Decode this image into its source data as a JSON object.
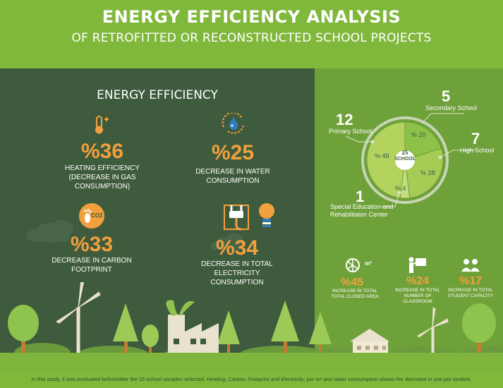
{
  "header": {
    "title": "ENERGY EFFICIENCY ANALYSIS",
    "subtitle": "OF RETROFITTED OR RECONSTRUCTED SCHOOL PROJECTS"
  },
  "energy": {
    "title": "ENERGY EFFICIENCY",
    "stats": [
      {
        "value": "%36",
        "label_lines": [
          "HEATING EFFICIENCY",
          "(DECREASE IN GAS",
          "CONSUMPTION)"
        ],
        "icon": "thermometer-icon"
      },
      {
        "value": "%25",
        "label_lines": [
          "DECREASE IN WATER",
          "CONSUMPTION"
        ],
        "icon": "water-drop-icon"
      },
      {
        "value": "%33",
        "label_lines": [
          "DECREASE IN CARBON",
          "FOOTPRINT"
        ],
        "icon": "footprint-co2-icon",
        "icon_text": "CO2"
      },
      {
        "value": "%34",
        "label_lines": [
          "DECREASE IN TOTAL",
          "ELECTRICITY",
          "CONSUMPTION"
        ],
        "icon": "plug-bulb-icon"
      }
    ]
  },
  "schools": {
    "total": "25",
    "center_label": "SCHOOL",
    "segments": [
      {
        "count": "12",
        "name": "Primary School",
        "percent": "% 48",
        "value": 48,
        "color": "#b4d35e"
      },
      {
        "count": "5",
        "name": "Secondary School",
        "percent": "% 20",
        "value": 20,
        "color": "#8dc14a"
      },
      {
        "count": "7",
        "name": "High School",
        "percent": "% 28",
        "value": 28,
        "color": "#a6cc56"
      },
      {
        "count": "1",
        "name_lines": [
          "Special Education and",
          "Rehabilitaion Center"
        ],
        "percent": "% 4",
        "value": 4,
        "color": "#c6de80"
      }
    ]
  },
  "building_stats": [
    {
      "value": "%45",
      "label_lines": [
        "INCREASE IN TOTAL",
        "TOTAL CLOSED AREA"
      ],
      "icon": "area-m2-icon",
      "icon_text": "m²"
    },
    {
      "value": "%24",
      "label_lines": [
        "INCREASE IN TOTAL",
        "NUMBER OF",
        "CLASSROOM"
      ],
      "icon": "teacher-board-icon"
    },
    {
      "value": "%17",
      "label_lines": [
        "INCREASE IN TOTAL",
        "STUDENT CAPACITY"
      ],
      "icon": "students-icon"
    }
  ],
  "footnote": "In this study, it was evaluated before/after the 25 school samples selected. Heating, Carbon, Footprint and Electricity; per m² and water consumption shows the decrease in use per student.",
  "colors": {
    "header_green": "#80b83c",
    "dark_green": "#3f5b3d",
    "right_green": "#6fa13a",
    "accent_orange": "#f2a03d"
  }
}
